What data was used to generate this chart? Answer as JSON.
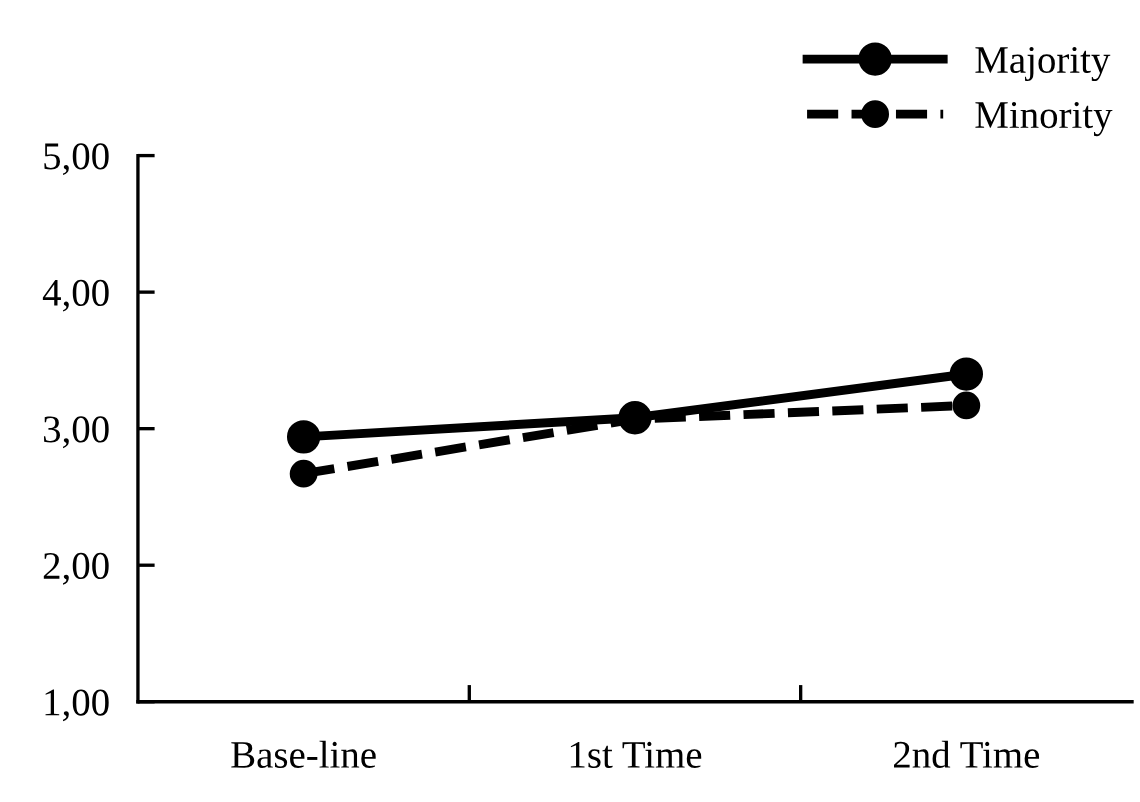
{
  "chart_data": {
    "type": "line",
    "categories": [
      "Base-line",
      "1st Time",
      "2nd Time"
    ],
    "series": [
      {
        "name": "Majority",
        "color": "#000000",
        "values": [
          2.94,
          3.08,
          3.4
        ],
        "line_style": "solid"
      },
      {
        "name": "Minority",
        "color": "#000000",
        "values": [
          2.67,
          3.07,
          3.17
        ],
        "line_style": "dashed"
      }
    ],
    "ylim": [
      1,
      5
    ],
    "yticks": [
      {
        "value": 1,
        "label": "1,00"
      },
      {
        "value": 2,
        "label": "2,00"
      },
      {
        "value": 3,
        "label": "3,00"
      },
      {
        "value": 4,
        "label": "4,00"
      },
      {
        "value": 5,
        "label": "5,00"
      }
    ],
    "marker": "circle",
    "legend": "top right",
    "grid": false
  }
}
